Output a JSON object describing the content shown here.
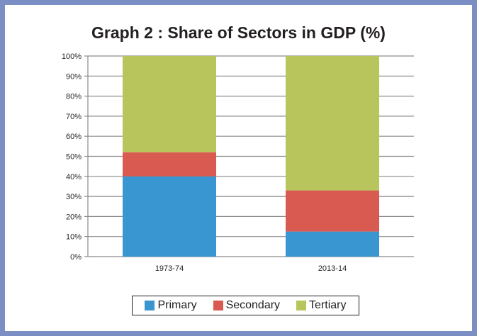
{
  "chart_data": {
    "type": "bar",
    "stacked": true,
    "title": "Graph 2 : Share of Sectors in GDP (%)",
    "categories": [
      "1973-74",
      "2013-14"
    ],
    "series": [
      {
        "name": "Primary",
        "values": [
          40,
          12.5
        ],
        "color": "#3a96d0"
      },
      {
        "name": "Secondary",
        "values": [
          12,
          20.5
        ],
        "color": "#d95a50"
      },
      {
        "name": "Tertiary",
        "values": [
          48,
          67
        ],
        "color": "#b8c45c"
      }
    ],
    "yticks": [
      "0%",
      "10%",
      "20%",
      "30%",
      "40%",
      "50%",
      "60%",
      "70%",
      "80%",
      "90%",
      "100%"
    ],
    "ylim": [
      0,
      100
    ],
    "grid": true,
    "legend_position": "bottom"
  }
}
